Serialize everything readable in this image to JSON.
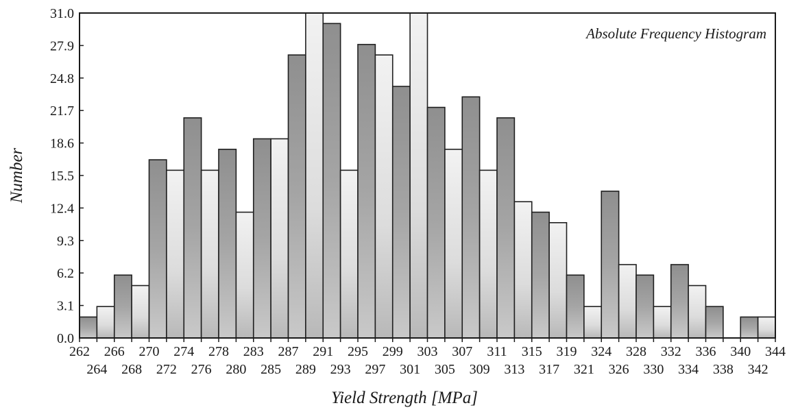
{
  "chart_data": {
    "type": "bar",
    "title": "Absolute Frequency Histogram",
    "xlabel": "Yield Strength [MPa]",
    "ylabel": "Number",
    "ylim": [
      0,
      31
    ],
    "y_ticks": [
      "0.0",
      "3.1",
      "6.2",
      "9.3",
      "12.4",
      "15.5",
      "18.6",
      "21.7",
      "24.8",
      "27.9",
      "31.0"
    ],
    "x_tick_labels_upper": [
      "262",
      "266",
      "270",
      "274",
      "278",
      "283",
      "287",
      "291",
      "295",
      "299",
      "303",
      "307",
      "311",
      "315",
      "319",
      "324",
      "328",
      "332",
      "336",
      "340",
      "344"
    ],
    "x_tick_labels_lower": [
      "264",
      "268",
      "272",
      "276",
      "280",
      "285",
      "289",
      "293",
      "297",
      "301",
      "305",
      "309",
      "313",
      "317",
      "321",
      "326",
      "330",
      "334",
      "338",
      "342"
    ],
    "values": [
      2,
      3,
      6,
      5,
      17,
      16,
      21,
      16,
      18,
      12,
      19,
      19,
      27,
      31,
      30,
      16,
      28,
      27,
      24,
      31,
      22,
      18,
      23,
      16,
      21,
      13,
      12,
      11,
      6,
      3,
      14,
      7,
      6,
      3,
      7,
      5,
      3,
      0,
      2,
      2
    ],
    "grid": false,
    "legend": "none"
  }
}
